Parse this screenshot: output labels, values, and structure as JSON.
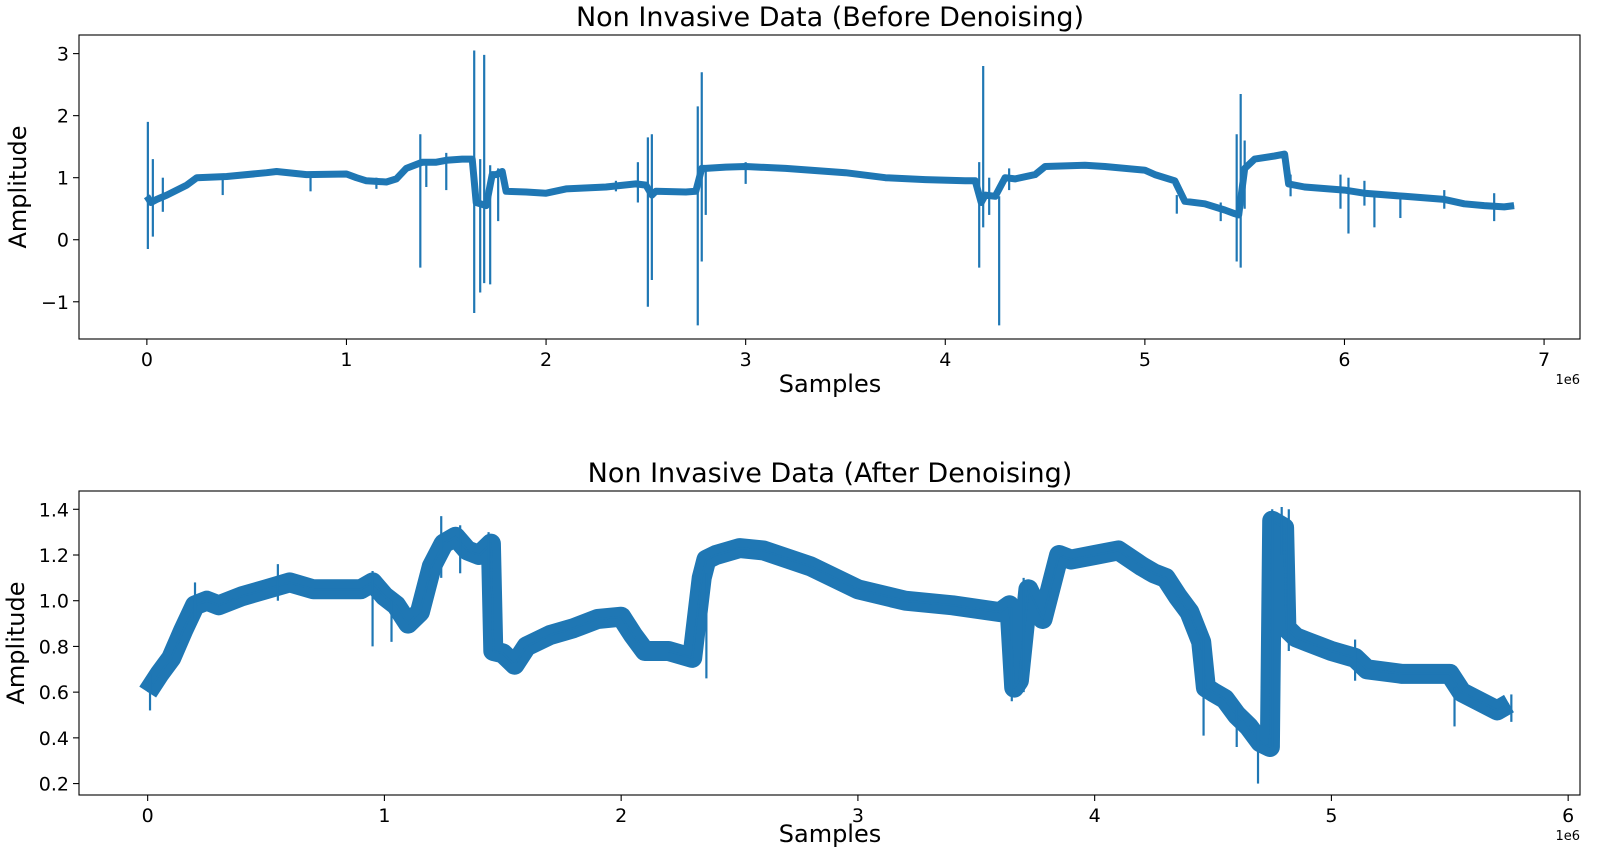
{
  "chart_data": [
    {
      "type": "line",
      "title": "Non Invasive Data (Before Denoising)",
      "xlabel": "Samples",
      "ylabel": "Amplitude",
      "x_offset_label": "1e6",
      "xlim": [
        -0.34,
        7.18
      ],
      "ylim": [
        -1.6,
        3.3
      ],
      "xticks": [
        0,
        1,
        2,
        3,
        4,
        5,
        6,
        7
      ],
      "xtick_labels": [
        "0",
        "1",
        "2",
        "3",
        "4",
        "5",
        "6",
        "7"
      ],
      "yticks": [
        -1,
        0,
        1,
        2,
        3
      ],
      "ytick_labels": [
        "−1",
        "0",
        "1",
        "2",
        "3"
      ],
      "grid": false,
      "legend": "none",
      "color": "#1f77b4",
      "series": [
        {
          "x": [
            0,
            0.01,
            0.02,
            0.05,
            0.1,
            0.2,
            0.25,
            0.4,
            0.6,
            0.65,
            0.8,
            1.0,
            1.05,
            1.1,
            1.2,
            1.25,
            1.3,
            1.38,
            1.45,
            1.5,
            1.58,
            1.63,
            1.65,
            1.7,
            1.73,
            1.75,
            1.78,
            1.8,
            1.9,
            2.0,
            2.1,
            2.3,
            2.45,
            2.5,
            2.53,
            2.55,
            2.7,
            2.75,
            2.78,
            2.8,
            2.9,
            3.0,
            3.2,
            3.5,
            3.7,
            3.9,
            4.1,
            4.15,
            4.18,
            4.2,
            4.25,
            4.3,
            4.35,
            4.45,
            4.5,
            4.7,
            4.8,
            5.0,
            5.05,
            5.15,
            5.2,
            5.3,
            5.4,
            5.45,
            5.47,
            5.5,
            5.55,
            5.65,
            5.7,
            5.72,
            5.8,
            6.0,
            6.1,
            6.3,
            6.5,
            6.6,
            6.7,
            6.8,
            6.85
          ],
          "y": [
            0.7,
            0.65,
            0.6,
            0.65,
            0.72,
            0.88,
            1.0,
            1.02,
            1.08,
            1.1,
            1.05,
            1.06,
            1.0,
            0.95,
            0.93,
            0.98,
            1.15,
            1.25,
            1.25,
            1.28,
            1.3,
            1.3,
            0.6,
            0.55,
            1.05,
            1.05,
            1.1,
            0.78,
            0.77,
            0.75,
            0.82,
            0.85,
            0.9,
            0.88,
            0.72,
            0.78,
            0.77,
            0.78,
            1.15,
            1.15,
            1.17,
            1.18,
            1.15,
            1.08,
            1.0,
            0.97,
            0.95,
            0.95,
            0.6,
            0.72,
            0.7,
            1.0,
            0.98,
            1.05,
            1.18,
            1.2,
            1.18,
            1.12,
            1.05,
            0.95,
            0.62,
            0.58,
            0.48,
            0.42,
            0.4,
            1.15,
            1.3,
            1.35,
            1.38,
            0.9,
            0.85,
            0.8,
            0.75,
            0.7,
            0.65,
            0.58,
            0.55,
            0.53,
            0.55
          ]
        }
      ],
      "spikes": [
        {
          "x": 0.005,
          "y_low": -0.15,
          "y_high": 1.9
        },
        {
          "x": 0.03,
          "y_low": 0.05,
          "y_high": 1.3
        },
        {
          "x": 0.08,
          "y_low": 0.45,
          "y_high": 1.0
        },
        {
          "x": 0.38,
          "y_low": 0.72,
          "y_high": 1.02
        },
        {
          "x": 0.82,
          "y_low": 0.78,
          "y_high": 1.05
        },
        {
          "x": 1.15,
          "y_low": 0.82,
          "y_high": 1.0
        },
        {
          "x": 1.37,
          "y_low": -0.45,
          "y_high": 1.7
        },
        {
          "x": 1.4,
          "y_low": 0.85,
          "y_high": 1.3
        },
        {
          "x": 1.5,
          "y_low": 0.8,
          "y_high": 1.4
        },
        {
          "x": 1.64,
          "y_low": -1.18,
          "y_high": 3.05
        },
        {
          "x": 1.67,
          "y_low": -0.85,
          "y_high": 1.3
        },
        {
          "x": 1.69,
          "y_low": -0.7,
          "y_high": 2.98
        },
        {
          "x": 1.72,
          "y_low": -0.72,
          "y_high": 1.2
        },
        {
          "x": 1.76,
          "y_low": 0.3,
          "y_high": 1.15
        },
        {
          "x": 2.35,
          "y_low": 0.78,
          "y_high": 0.95
        },
        {
          "x": 2.46,
          "y_low": 0.6,
          "y_high": 1.25
        },
        {
          "x": 2.51,
          "y_low": -1.08,
          "y_high": 1.65
        },
        {
          "x": 2.53,
          "y_low": -0.65,
          "y_high": 1.7
        },
        {
          "x": 2.76,
          "y_low": -1.38,
          "y_high": 2.15
        },
        {
          "x": 2.78,
          "y_low": -0.35,
          "y_high": 2.7
        },
        {
          "x": 2.8,
          "y_low": 0.4,
          "y_high": 1.1
        },
        {
          "x": 3.0,
          "y_low": 0.9,
          "y_high": 1.25
        },
        {
          "x": 4.17,
          "y_low": -0.45,
          "y_high": 1.25
        },
        {
          "x": 4.19,
          "y_low": 0.2,
          "y_high": 2.8
        },
        {
          "x": 4.22,
          "y_low": 0.4,
          "y_high": 1.0
        },
        {
          "x": 4.27,
          "y_low": -1.38,
          "y_high": 0.7
        },
        {
          "x": 4.32,
          "y_low": 0.8,
          "y_high": 1.15
        },
        {
          "x": 5.16,
          "y_low": 0.42,
          "y_high": 0.72
        },
        {
          "x": 5.38,
          "y_low": 0.3,
          "y_high": 0.6
        },
        {
          "x": 5.46,
          "y_low": -0.35,
          "y_high": 1.7
        },
        {
          "x": 5.48,
          "y_low": -0.45,
          "y_high": 2.35
        },
        {
          "x": 5.5,
          "y_low": 0.5,
          "y_high": 1.6
        },
        {
          "x": 5.73,
          "y_low": 0.7,
          "y_high": 1.05
        },
        {
          "x": 5.98,
          "y_low": 0.5,
          "y_high": 1.05
        },
        {
          "x": 6.02,
          "y_low": 0.1,
          "y_high": 1.0
        },
        {
          "x": 6.1,
          "y_low": 0.55,
          "y_high": 0.95
        },
        {
          "x": 6.15,
          "y_low": 0.2,
          "y_high": 0.75
        },
        {
          "x": 6.28,
          "y_low": 0.35,
          "y_high": 0.75
        },
        {
          "x": 6.5,
          "y_low": 0.5,
          "y_high": 0.8
        },
        {
          "x": 6.75,
          "y_low": 0.3,
          "y_high": 0.75
        }
      ]
    },
    {
      "type": "line",
      "title": "Non Invasive Data (After Denoising)",
      "xlabel": "Samples",
      "ylabel": "Amplitude",
      "x_offset_label": "1e6",
      "xlim": [
        -0.29,
        6.05
      ],
      "ylim": [
        0.15,
        1.48
      ],
      "xticks": [
        0,
        1,
        2,
        3,
        4,
        5,
        6
      ],
      "xtick_labels": [
        "0",
        "1",
        "2",
        "3",
        "4",
        "5",
        "6"
      ],
      "yticks": [
        0.2,
        0.4,
        0.6,
        0.8,
        1.0,
        1.2,
        1.4
      ],
      "ytick_labels": [
        "0.2",
        "0.4",
        "0.6",
        "0.8",
        "1.0",
        "1.2",
        "1.4"
      ],
      "grid": false,
      "legend": "none",
      "color": "#1f77b4",
      "series": [
        {
          "x": [
            0,
            0.05,
            0.1,
            0.15,
            0.2,
            0.25,
            0.3,
            0.4,
            0.5,
            0.6,
            0.7,
            0.8,
            0.9,
            0.95,
            1.0,
            1.05,
            1.1,
            1.15,
            1.2,
            1.25,
            1.3,
            1.35,
            1.4,
            1.45,
            1.46,
            1.5,
            1.55,
            1.6,
            1.7,
            1.8,
            1.9,
            2.0,
            2.05,
            2.1,
            2.2,
            2.3,
            2.34,
            2.36,
            2.4,
            2.5,
            2.6,
            2.8,
            3.0,
            3.2,
            3.4,
            3.6,
            3.64,
            3.66,
            3.68,
            3.72,
            3.78,
            3.85,
            3.9,
            4.0,
            4.1,
            4.2,
            4.25,
            4.3,
            4.35,
            4.4,
            4.45,
            4.47,
            4.5,
            4.55,
            4.6,
            4.65,
            4.7,
            4.74,
            4.75,
            4.8,
            4.81,
            4.85,
            4.9,
            5.0,
            5.1,
            5.15,
            5.3,
            5.5,
            5.55,
            5.7,
            5.75
          ],
          "y": [
            0.6,
            0.68,
            0.75,
            0.87,
            0.98,
            1.0,
            0.98,
            1.02,
            1.05,
            1.08,
            1.05,
            1.05,
            1.05,
            1.08,
            1.02,
            0.98,
            0.9,
            0.95,
            1.15,
            1.25,
            1.28,
            1.22,
            1.2,
            1.25,
            0.78,
            0.77,
            0.72,
            0.8,
            0.85,
            0.88,
            0.92,
            0.93,
            0.85,
            0.78,
            0.78,
            0.75,
            1.1,
            1.18,
            1.2,
            1.23,
            1.22,
            1.15,
            1.05,
            1.0,
            0.98,
            0.95,
            0.98,
            0.62,
            0.65,
            1.05,
            0.92,
            1.2,
            1.18,
            1.2,
            1.22,
            1.15,
            1.12,
            1.1,
            1.02,
            0.95,
            0.82,
            0.62,
            0.6,
            0.57,
            0.5,
            0.45,
            0.38,
            0.36,
            1.35,
            1.32,
            0.88,
            0.84,
            0.82,
            0.78,
            0.75,
            0.7,
            0.68,
            0.68,
            0.6,
            0.52,
            0.55
          ]
        }
      ],
      "spikes": [
        {
          "x": 0.01,
          "y_low": 0.52,
          "y_high": 0.68
        },
        {
          "x": 0.2,
          "y_low": 0.92,
          "y_high": 1.08
        },
        {
          "x": 0.55,
          "y_low": 1.0,
          "y_high": 1.16
        },
        {
          "x": 0.95,
          "y_low": 0.8,
          "y_high": 1.13
        },
        {
          "x": 1.03,
          "y_low": 0.82,
          "y_high": 1.0
        },
        {
          "x": 1.24,
          "y_low": 1.1,
          "y_high": 1.37
        },
        {
          "x": 1.32,
          "y_low": 1.12,
          "y_high": 1.33
        },
        {
          "x": 1.44,
          "y_low": 1.1,
          "y_high": 1.3
        },
        {
          "x": 2.36,
          "y_low": 0.66,
          "y_high": 1.12
        },
        {
          "x": 3.65,
          "y_low": 0.56,
          "y_high": 0.97
        },
        {
          "x": 3.7,
          "y_low": 0.6,
          "y_high": 1.1
        },
        {
          "x": 4.46,
          "y_low": 0.41,
          "y_high": 0.86
        },
        {
          "x": 4.6,
          "y_low": 0.36,
          "y_high": 0.55
        },
        {
          "x": 4.69,
          "y_low": 0.2,
          "y_high": 0.45
        },
        {
          "x": 4.75,
          "y_low": 0.36,
          "y_high": 1.4
        },
        {
          "x": 4.79,
          "y_low": 1.2,
          "y_high": 1.41
        },
        {
          "x": 4.82,
          "y_low": 0.78,
          "y_high": 1.4
        },
        {
          "x": 5.1,
          "y_low": 0.65,
          "y_high": 0.83
        },
        {
          "x": 5.52,
          "y_low": 0.45,
          "y_high": 0.62
        },
        {
          "x": 5.76,
          "y_low": 0.47,
          "y_high": 0.59
        }
      ]
    }
  ]
}
